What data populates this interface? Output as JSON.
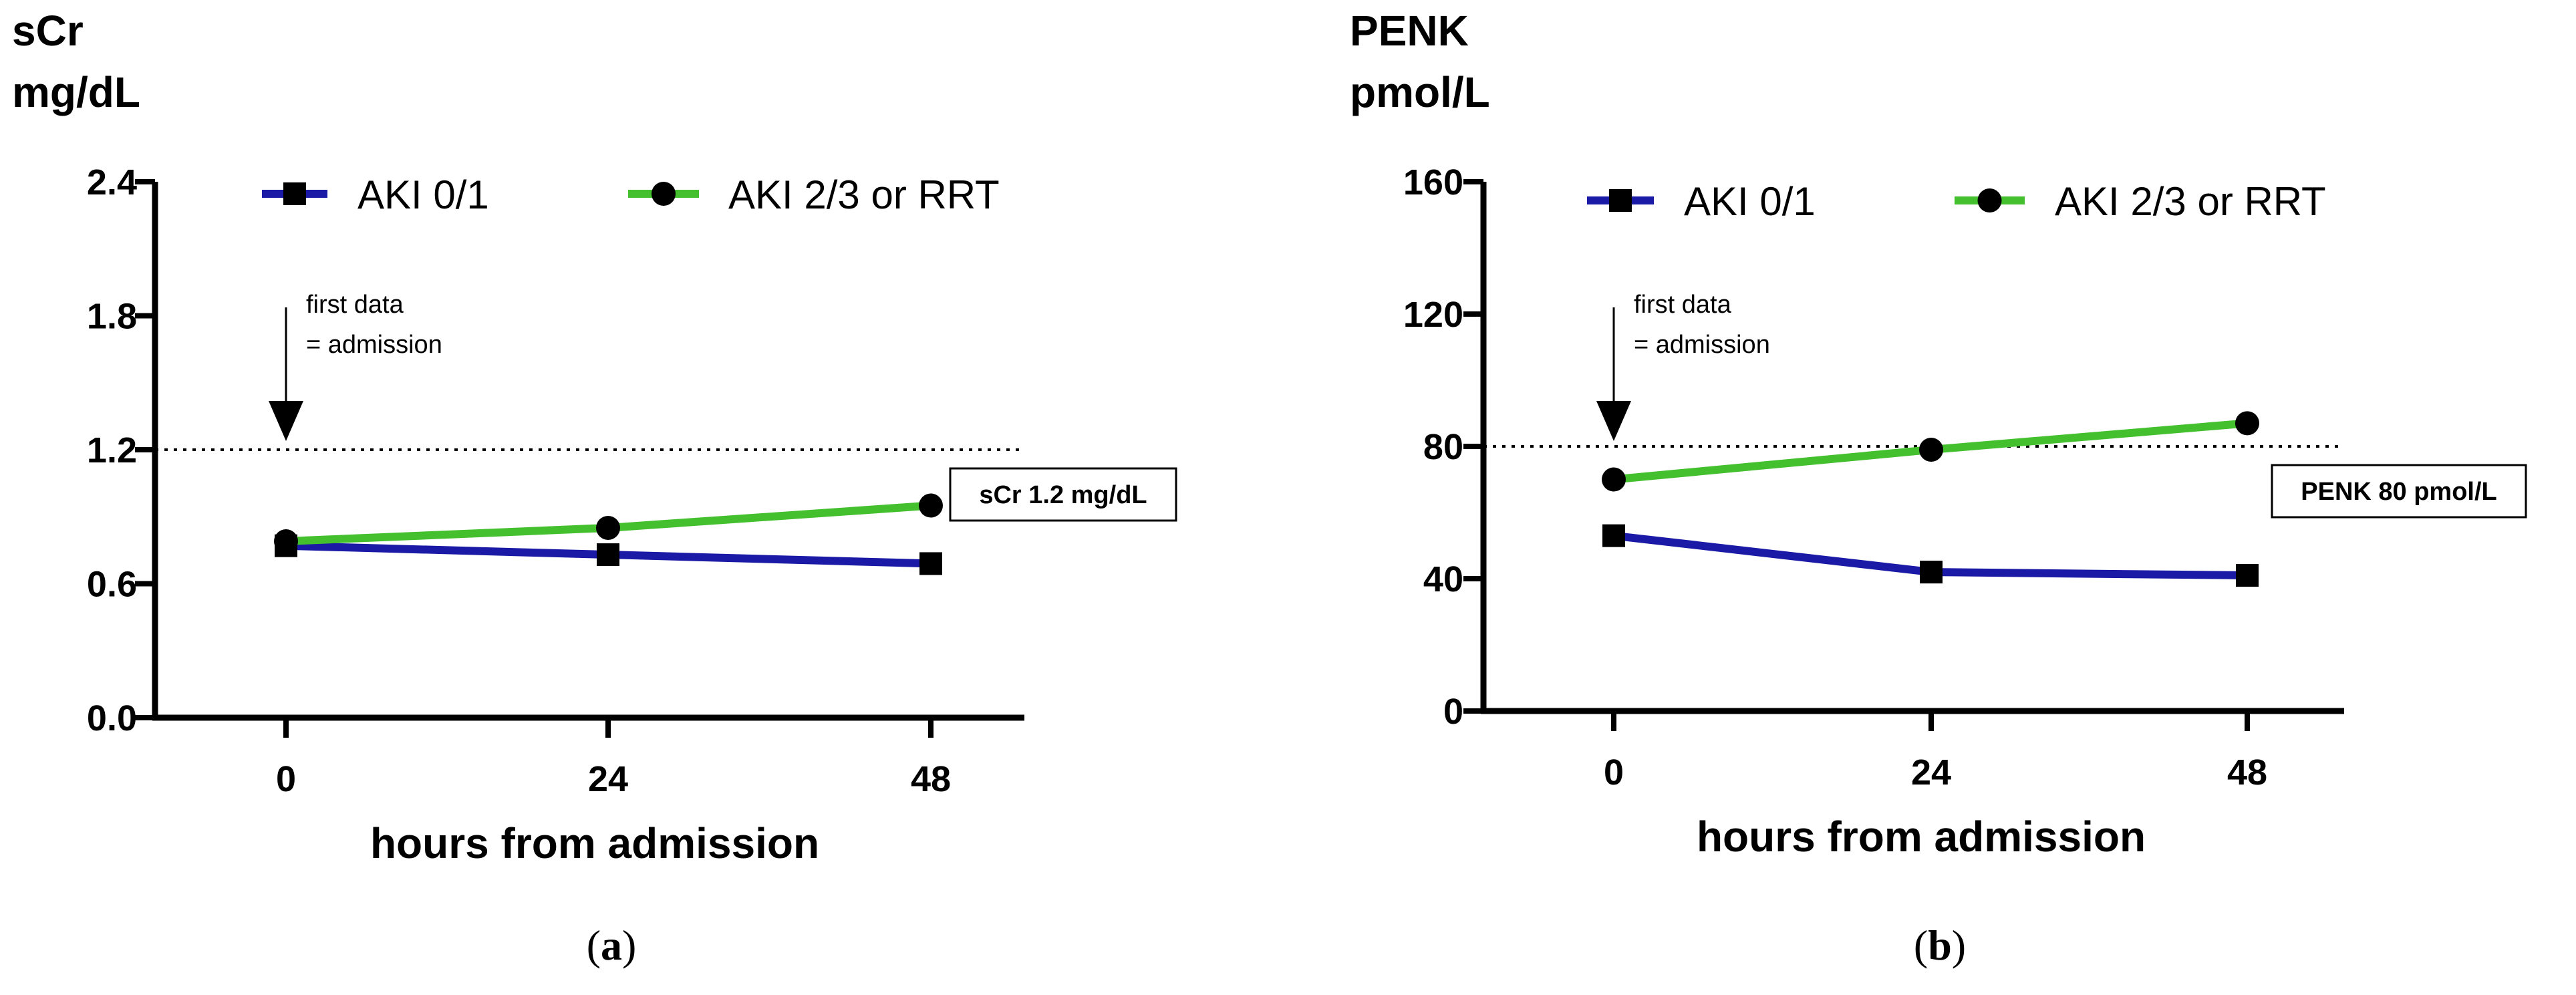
{
  "chart_data": [
    {
      "type": "line",
      "panel_label": "a",
      "ylabel_line1": "sCr",
      "ylabel_line2": "mg/dL",
      "xlabel": "hours from admission",
      "categories": [
        "0",
        "24",
        "48"
      ],
      "x": [
        0,
        24,
        48
      ],
      "ylim": [
        0,
        2.4
      ],
      "yticks": [
        0.0,
        0.6,
        1.2,
        1.8,
        2.4
      ],
      "ytick_labels": [
        "0.0",
        "0.6",
        "1.2",
        "1.8",
        "2.4"
      ],
      "series": [
        {
          "name": "AKI 0/1",
          "values": [
            0.77,
            0.73,
            0.69
          ],
          "color": "#1a1aa6",
          "marker": "square"
        },
        {
          "name": "AKI 2/3 or RRT",
          "values": [
            0.79,
            0.85,
            0.95
          ],
          "color": "#44c02e",
          "marker": "circle"
        }
      ],
      "reference": {
        "value": 1.2,
        "label": "sCr 1.2 mg/dL"
      },
      "annotation": {
        "line1": "first data",
        "line2": "= admission",
        "x": 0
      }
    },
    {
      "type": "line",
      "panel_label": "b",
      "ylabel_line1": "PENK",
      "ylabel_line2": "pmol/L",
      "xlabel": "hours from admission",
      "categories": [
        "0",
        "24",
        "48"
      ],
      "x": [
        0,
        24,
        48
      ],
      "ylim": [
        0,
        160
      ],
      "yticks": [
        0,
        40,
        80,
        120,
        160
      ],
      "ytick_labels": [
        "0",
        "40",
        "80",
        "120",
        "160"
      ],
      "series": [
        {
          "name": "AKI 0/1",
          "values": [
            53,
            42,
            41
          ],
          "color": "#1a1aa6",
          "marker": "square"
        },
        {
          "name": "AKI 2/3 or RRT",
          "values": [
            70,
            79,
            87
          ],
          "color": "#44c02e",
          "marker": "circle"
        }
      ],
      "reference": {
        "value": 80,
        "label": "PENK 80 pmol/L"
      },
      "annotation": {
        "line1": "first data",
        "line2": "= admission",
        "x": 0
      }
    }
  ]
}
